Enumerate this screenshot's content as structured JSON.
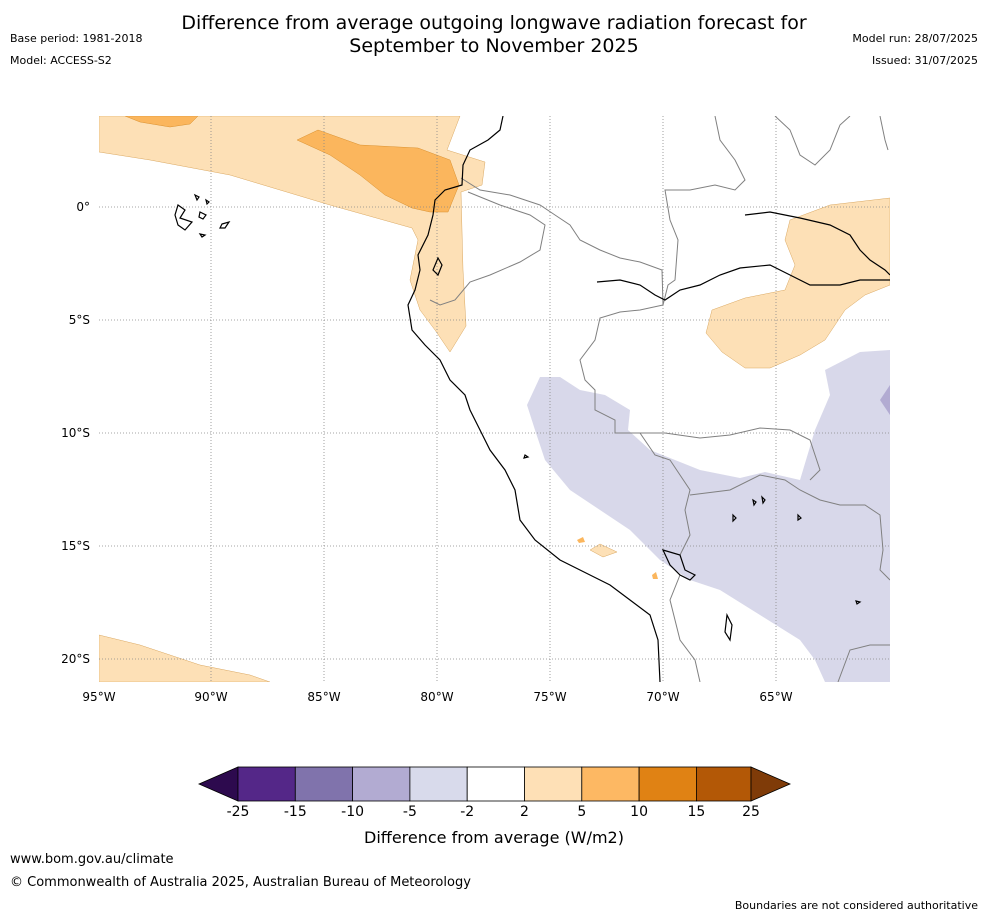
{
  "title_line1": "Difference from average outgoing longwave radiation forecast for",
  "title_line2": "September to November 2025",
  "base_period": "Base period: 1981-2018",
  "model": "Model: ACCESS-S2",
  "model_run": "Model run: 28/07/2025",
  "issued": "Issued: 31/07/2025",
  "map": {
    "lat_labels": [
      "0°",
      "5°S",
      "10°S",
      "15°S",
      "20°S"
    ],
    "lon_labels": [
      "95°W",
      "90°W",
      "85°W",
      "80°W",
      "75°W",
      "70°W",
      "65°W"
    ],
    "colors": {
      "ocean_land_bg": "#ffffff",
      "light_orange": "#fde0b6",
      "mid_orange": "#fbb65d",
      "light_purple": "#d8d8ea",
      "mid_purple": "#b2abd2",
      "coastline": "#000000",
      "borders": "#808080",
      "gridlines": "#888888"
    }
  },
  "colorbar": {
    "ticks": [
      "-25",
      "-15",
      "-10",
      "-5",
      "-2",
      "2",
      "5",
      "10",
      "15",
      "25"
    ],
    "colors": [
      "#2d0a4e",
      "#542788",
      "#8073ac",
      "#b2abd2",
      "#d8daeb",
      "#ffffff",
      "#fee0b6",
      "#fdb863",
      "#e08214",
      "#b35806",
      "#7f3b08"
    ],
    "title": "Difference from average (W/m2)"
  },
  "footer": {
    "website": "www.bom.gov.au/climate",
    "copyright": "© Commonwealth of Australia 2025, Australian Bureau of Meteorology",
    "disclaimer": "Boundaries are not considered authoritative"
  }
}
